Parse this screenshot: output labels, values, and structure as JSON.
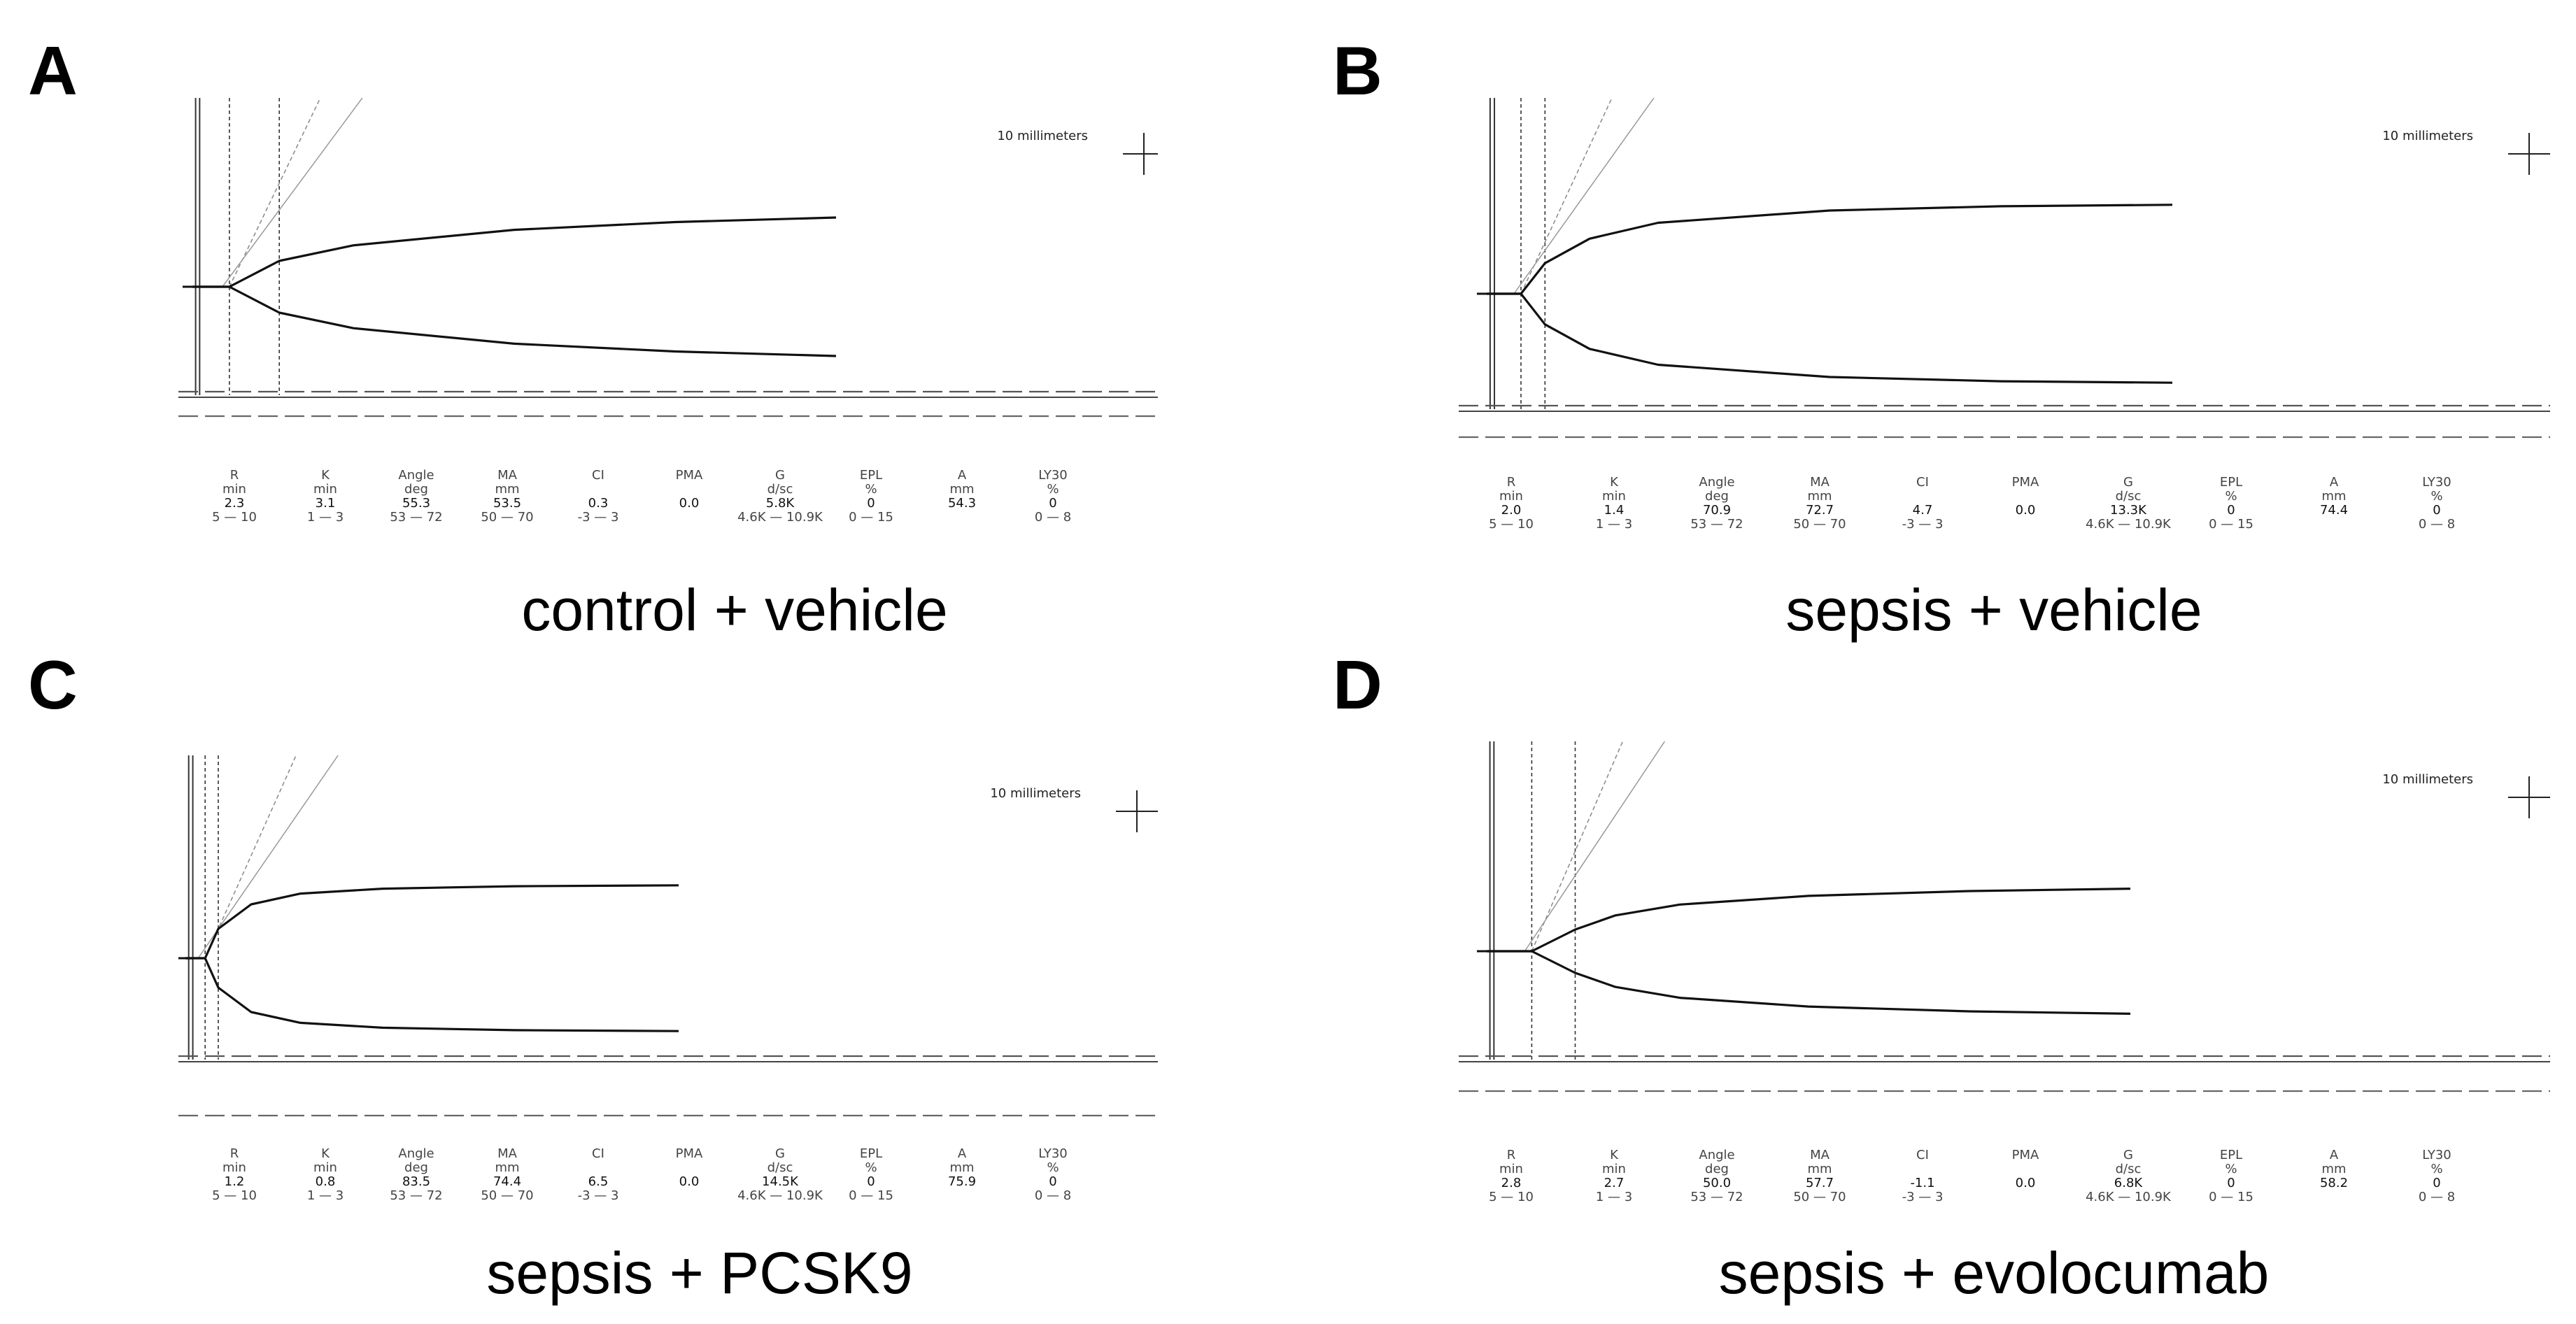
{
  "figure": {
    "panels": [
      {
        "label": "A",
        "caption": "control + vehicle",
        "scale_label": "10 millimeters",
        "chart_data": {
          "type": "line",
          "title": "control + vehicle",
          "series": [
            {
              "name": "upper",
              "x": [
                0,
                2.3,
                5.4,
                10,
                20,
                30,
                40
              ],
              "y": [
                0,
                0,
                20,
                32,
                44,
                50,
                53.5
              ]
            },
            {
              "name": "lower",
              "x": [
                0,
                2.3,
                5.4,
                10,
                20,
                30,
                40
              ],
              "y": [
                0,
                0,
                -20,
                -32,
                -44,
                -50,
                -53.5
              ]
            }
          ],
          "params": [
            {
              "name": "R",
              "unit": "min",
              "value": "2.3",
              "range": "5 — 10"
            },
            {
              "name": "K",
              "unit": "min",
              "value": "3.1",
              "range": "1 — 3"
            },
            {
              "name": "Angle",
              "unit": "deg",
              "value": "55.3",
              "range": "53 — 72"
            },
            {
              "name": "MA",
              "unit": "mm",
              "value": "53.5",
              "range": "50 — 70"
            },
            {
              "name": "CI",
              "unit": "",
              "value": "0.3",
              "range": "-3 — 3"
            },
            {
              "name": "PMA",
              "unit": "",
              "value": "0.0",
              "range": ""
            },
            {
              "name": "G",
              "unit": "d/sc",
              "value": "5.8K",
              "range": "4.6K — 10.9K"
            },
            {
              "name": "EPL",
              "unit": "%",
              "value": "0",
              "range": "0 — 15"
            },
            {
              "name": "A",
              "unit": "mm",
              "value": "54.3",
              "range": ""
            },
            {
              "name": "LY30",
              "unit": "%",
              "value": "0",
              "range": "0 — 8"
            }
          ]
        }
      },
      {
        "label": "B",
        "caption": "sepsis + vehicle",
        "scale_label": "10 millimeters",
        "chart_data": {
          "type": "line",
          "title": "sepsis + vehicle",
          "series": [
            {
              "name": "upper",
              "x": [
                0,
                2.0,
                3.4,
                6,
                10,
                20,
                30,
                40
              ],
              "y": [
                0,
                0,
                25,
                45,
                58,
                68,
                71.5,
                72.7
              ]
            },
            {
              "name": "lower",
              "x": [
                0,
                2.0,
                3.4,
                6,
                10,
                20,
                30,
                40
              ],
              "y": [
                0,
                0,
                -25,
                -45,
                -58,
                -68,
                -71.5,
                -72.7
              ]
            }
          ],
          "params": [
            {
              "name": "R",
              "unit": "min",
              "value": "2.0",
              "range": "5 — 10"
            },
            {
              "name": "K",
              "unit": "min",
              "value": "1.4",
              "range": "1 — 3"
            },
            {
              "name": "Angle",
              "unit": "deg",
              "value": "70.9",
              "range": "53 — 72"
            },
            {
              "name": "MA",
              "unit": "mm",
              "value": "72.7",
              "range": "50 — 70"
            },
            {
              "name": "CI",
              "unit": "",
              "value": "4.7",
              "range": "-3 — 3"
            },
            {
              "name": "PMA",
              "unit": "",
              "value": "0.0",
              "range": ""
            },
            {
              "name": "G",
              "unit": "d/sc",
              "value": "13.3K",
              "range": "4.6K — 10.9K"
            },
            {
              "name": "EPL",
              "unit": "%",
              "value": "0",
              "range": "0 — 15"
            },
            {
              "name": "A",
              "unit": "mm",
              "value": "74.4",
              "range": ""
            },
            {
              "name": "LY30",
              "unit": "%",
              "value": "0",
              "range": "0 — 8"
            }
          ]
        }
      },
      {
        "label": "C",
        "caption": "sepsis + PCSK9",
        "scale_label": "10 millimeters",
        "chart_data": {
          "type": "line",
          "title": "sepsis + PCSK9",
          "series": [
            {
              "name": "upper",
              "x": [
                0,
                1.2,
                2.0,
                4,
                7,
                12,
                20,
                30
              ],
              "y": [
                0,
                0,
                30,
                55,
                66,
                71,
                73.5,
                74.4
              ]
            },
            {
              "name": "lower",
              "x": [
                0,
                1.2,
                2.0,
                4,
                7,
                12,
                20,
                30
              ],
              "y": [
                0,
                0,
                -30,
                -55,
                -66,
                -71,
                -73.5,
                -74.4
              ]
            }
          ],
          "params": [
            {
              "name": "R",
              "unit": "min",
              "value": "1.2",
              "range": "5 — 10"
            },
            {
              "name": "K",
              "unit": "min",
              "value": "0.8",
              "range": "1 — 3"
            },
            {
              "name": "Angle",
              "unit": "deg",
              "value": "83.5",
              "range": "53 — 72"
            },
            {
              "name": "MA",
              "unit": "mm",
              "value": "74.4",
              "range": "50 — 70"
            },
            {
              "name": "CI",
              "unit": "",
              "value": "6.5",
              "range": "-3 — 3"
            },
            {
              "name": "PMA",
              "unit": "",
              "value": "0.0",
              "range": ""
            },
            {
              "name": "G",
              "unit": "d/sc",
              "value": "14.5K",
              "range": "4.6K — 10.9K"
            },
            {
              "name": "EPL",
              "unit": "%",
              "value": "0",
              "range": "0 — 15"
            },
            {
              "name": "A",
              "unit": "mm",
              "value": "75.9",
              "range": ""
            },
            {
              "name": "LY30",
              "unit": "%",
              "value": "0",
              "range": "0 — 8"
            }
          ]
        }
      },
      {
        "label": "D",
        "caption": "sepsis + evolocumab",
        "scale_label": "10 millimeters",
        "chart_data": {
          "type": "line",
          "title": "sepsis + evolocumab",
          "series": [
            {
              "name": "upper",
              "x": [
                0,
                2.8,
                5.5,
                8,
                12,
                20,
                30,
                40
              ],
              "y": [
                0,
                0,
                20,
                33,
                43,
                51,
                55.5,
                57.7
              ]
            },
            {
              "name": "lower",
              "x": [
                0,
                2.8,
                5.5,
                8,
                12,
                20,
                30,
                40
              ],
              "y": [
                0,
                0,
                -20,
                -33,
                -43,
                -51,
                -55.5,
                -57.7
              ]
            }
          ],
          "params": [
            {
              "name": "R",
              "unit": "min",
              "value": "2.8",
              "range": "5 — 10"
            },
            {
              "name": "K",
              "unit": "min",
              "value": "2.7",
              "range": "1 — 3"
            },
            {
              "name": "Angle",
              "unit": "deg",
              "value": "50.0",
              "range": "53 — 72"
            },
            {
              "name": "MA",
              "unit": "mm",
              "value": "57.7",
              "range": "50 — 70"
            },
            {
              "name": "CI",
              "unit": "",
              "value": "-1.1",
              "range": "-3 — 3"
            },
            {
              "name": "PMA",
              "unit": "",
              "value": "0.0",
              "range": ""
            },
            {
              "name": "G",
              "unit": "d/sc",
              "value": "6.8K",
              "range": "4.6K — 10.9K"
            },
            {
              "name": "EPL",
              "unit": "%",
              "value": "0",
              "range": "0 — 15"
            },
            {
              "name": "A",
              "unit": "mm",
              "value": "58.2",
              "range": ""
            },
            {
              "name": "LY30",
              "unit": "%",
              "value": "0",
              "range": "0 — 8"
            }
          ]
        }
      }
    ]
  }
}
